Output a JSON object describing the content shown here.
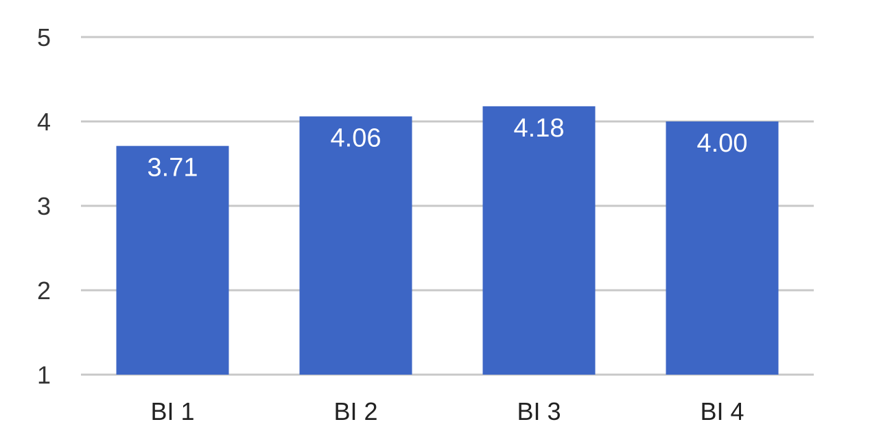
{
  "chart_data": {
    "type": "bar",
    "categories": [
      "BI 1",
      "BI 2",
      "BI 3",
      "BI 4"
    ],
    "values": [
      3.71,
      4.06,
      4.18,
      4.0
    ],
    "data_labels": [
      "3.71",
      "4.06",
      "4.18",
      "4.00"
    ],
    "yticks": [
      1,
      2,
      3,
      4,
      5
    ],
    "ylim": [
      1,
      5
    ],
    "bar_color": "#3d66c5",
    "grid": true,
    "legend": "none"
  }
}
